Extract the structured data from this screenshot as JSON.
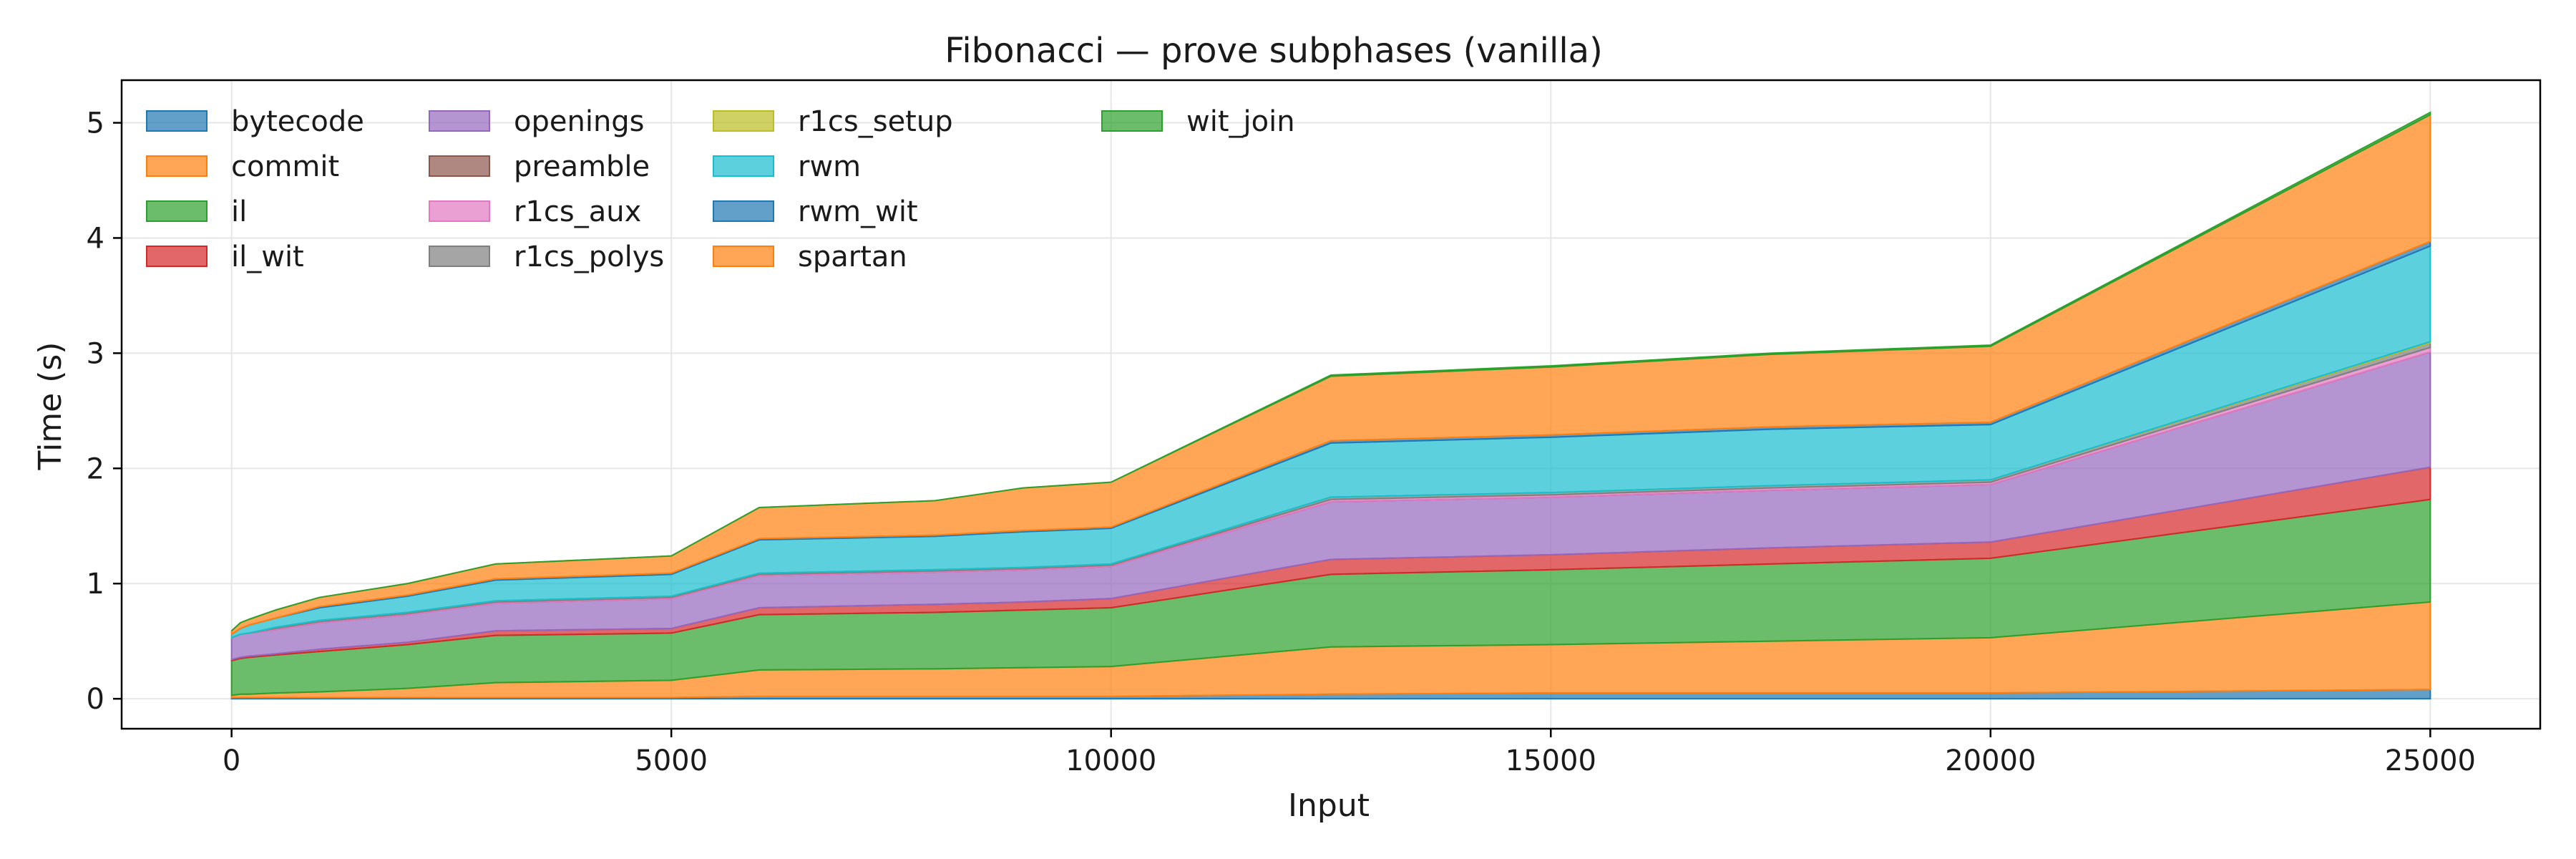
{
  "chart_data": {
    "type": "area",
    "stacked": true,
    "title": "Fibonacci — prove subphases (vanilla)",
    "xlabel": "Input",
    "ylabel": "Time (s)",
    "xlim": [
      -1250,
      26250
    ],
    "ylim": [
      -0.26,
      5.37
    ],
    "x_ticks": [
      0,
      5000,
      10000,
      15000,
      20000,
      25000
    ],
    "y_ticks": [
      0,
      1,
      2,
      3,
      4,
      5
    ],
    "grid": true,
    "legend": {
      "placement": "top-left",
      "columns": 4
    },
    "x": [
      0,
      100,
      200,
      500,
      1000,
      2000,
      3000,
      5000,
      6000,
      8000,
      9000,
      10000,
      12500,
      15000,
      17500,
      20000,
      25000
    ],
    "series": [
      {
        "name": "bytecode",
        "color": "#1f77b4",
        "values": [
          0.01,
          0.01,
          0.01,
          0.01,
          0.01,
          0.01,
          0.01,
          0.01,
          0.02,
          0.02,
          0.02,
          0.02,
          0.04,
          0.05,
          0.05,
          0.05,
          0.08
        ]
      },
      {
        "name": "commit",
        "color": "#ff7f0e",
        "values": [
          0.02,
          0.03,
          0.03,
          0.04,
          0.05,
          0.08,
          0.13,
          0.15,
          0.23,
          0.24,
          0.25,
          0.26,
          0.41,
          0.42,
          0.45,
          0.48,
          0.76
        ]
      },
      {
        "name": "il",
        "color": "#2ca02c",
        "values": [
          0.3,
          0.31,
          0.32,
          0.33,
          0.35,
          0.38,
          0.41,
          0.41,
          0.48,
          0.49,
          0.5,
          0.51,
          0.63,
          0.65,
          0.67,
          0.69,
          0.89
        ]
      },
      {
        "name": "il_wit",
        "color": "#d62728",
        "values": [
          0.01,
          0.01,
          0.01,
          0.01,
          0.02,
          0.02,
          0.04,
          0.04,
          0.06,
          0.07,
          0.07,
          0.08,
          0.13,
          0.13,
          0.14,
          0.14,
          0.28
        ]
      },
      {
        "name": "openings",
        "color": "#9467bd",
        "values": [
          0.19,
          0.2,
          0.2,
          0.21,
          0.23,
          0.24,
          0.24,
          0.26,
          0.28,
          0.28,
          0.28,
          0.28,
          0.5,
          0.5,
          0.5,
          0.5,
          1.0
        ]
      },
      {
        "name": "preamble",
        "color": "#8c564b",
        "values": [
          0.0,
          0.0,
          0.0,
          0.0,
          0.0,
          0.0,
          0.0,
          0.0,
          0.0,
          0.0,
          0.0,
          0.0,
          0.0,
          0.0,
          0.0,
          0.0,
          0.0
        ]
      },
      {
        "name": "r1cs_aux",
        "color": "#e377c2",
        "values": [
          0.0,
          0.0,
          0.0,
          0.01,
          0.01,
          0.01,
          0.01,
          0.01,
          0.01,
          0.01,
          0.01,
          0.01,
          0.02,
          0.02,
          0.02,
          0.02,
          0.04
        ]
      },
      {
        "name": "r1cs_polys",
        "color": "#7f7f7f",
        "values": [
          0.0,
          0.0,
          0.0,
          0.01,
          0.01,
          0.01,
          0.01,
          0.01,
          0.01,
          0.01,
          0.01,
          0.01,
          0.02,
          0.02,
          0.02,
          0.02,
          0.04
        ]
      },
      {
        "name": "r1cs_setup",
        "color": "#bcbd22",
        "values": [
          0.0,
          0.0,
          0.0,
          0.0,
          0.0,
          0.0,
          0.0,
          0.0,
          0.0,
          0.0,
          0.0,
          0.0,
          0.0,
          0.0,
          0.0,
          0.0,
          0.01
        ]
      },
      {
        "name": "rwm",
        "color": "#17becf",
        "values": [
          0.03,
          0.05,
          0.07,
          0.08,
          0.11,
          0.14,
          0.18,
          0.19,
          0.29,
          0.29,
          0.31,
          0.31,
          0.47,
          0.48,
          0.49,
          0.48,
          0.83
        ]
      },
      {
        "name": "rwm_wit",
        "color": "#1f77b4",
        "values": [
          0.0,
          0.0,
          0.0,
          0.0,
          0.01,
          0.01,
          0.01,
          0.01,
          0.01,
          0.01,
          0.01,
          0.01,
          0.02,
          0.02,
          0.02,
          0.02,
          0.04
        ]
      },
      {
        "name": "spartan",
        "color": "#ff7f0e",
        "values": [
          0.03,
          0.05,
          0.05,
          0.07,
          0.08,
          0.1,
          0.13,
          0.15,
          0.27,
          0.3,
          0.37,
          0.39,
          0.56,
          0.59,
          0.63,
          0.66,
          1.1
        ]
      },
      {
        "name": "wit_join",
        "color": "#2ca02c",
        "values": [
          0.0,
          0.0,
          0.0,
          0.0,
          0.0,
          0.0,
          0.0,
          0.0,
          0.0,
          0.0,
          0.0,
          0.0,
          0.01,
          0.01,
          0.01,
          0.01,
          0.02
        ]
      }
    ]
  }
}
